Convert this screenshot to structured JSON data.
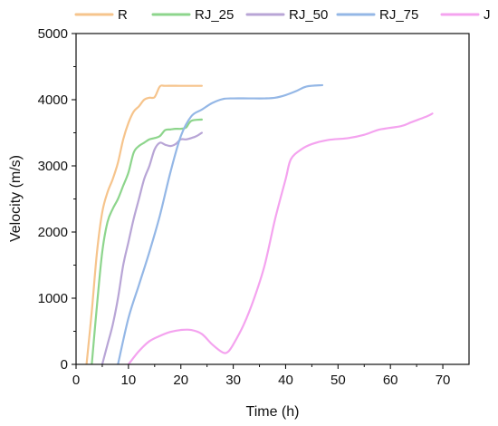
{
  "chart_data": {
    "type": "line",
    "xlabel": "Time (h)",
    "ylabel": "Velocity (m/s)",
    "xlim": [
      0,
      75
    ],
    "ylim": [
      0,
      5000
    ],
    "xticks": [
      0,
      10,
      20,
      30,
      40,
      50,
      60,
      70
    ],
    "yticks": [
      0,
      1000,
      2000,
      3000,
      4000,
      5000
    ],
    "grid": false,
    "legend_position": "top",
    "series": [
      {
        "name": "R",
        "color": "#F6C48C",
        "points": [
          [
            2,
            0
          ],
          [
            3,
            800
          ],
          [
            4,
            1700
          ],
          [
            5,
            2300
          ],
          [
            6,
            2600
          ],
          [
            7,
            2800
          ],
          [
            8,
            3050
          ],
          [
            9,
            3400
          ],
          [
            10,
            3650
          ],
          [
            11,
            3820
          ],
          [
            12,
            3900
          ],
          [
            13,
            4000
          ],
          [
            14,
            4030
          ],
          [
            15,
            4040
          ],
          [
            16,
            4200
          ],
          [
            17,
            4210
          ],
          [
            20,
            4210
          ],
          [
            24,
            4210
          ]
        ]
      },
      {
        "name": "RJ_25",
        "color": "#8DD58C",
        "points": [
          [
            3,
            0
          ],
          [
            4,
            900
          ],
          [
            5,
            1700
          ],
          [
            6,
            2150
          ],
          [
            7,
            2350
          ],
          [
            8,
            2500
          ],
          [
            9,
            2700
          ],
          [
            10,
            2900
          ],
          [
            11,
            3200
          ],
          [
            12,
            3300
          ],
          [
            13,
            3350
          ],
          [
            14,
            3400
          ],
          [
            15,
            3420
          ],
          [
            16,
            3450
          ],
          [
            17,
            3540
          ],
          [
            18,
            3550
          ],
          [
            19,
            3560
          ],
          [
            20,
            3560
          ],
          [
            21,
            3580
          ],
          [
            22,
            3680
          ],
          [
            24,
            3700
          ]
        ]
      },
      {
        "name": "RJ_50",
        "color": "#B8A5D6",
        "points": [
          [
            5,
            0
          ],
          [
            6,
            300
          ],
          [
            7,
            600
          ],
          [
            8,
            1000
          ],
          [
            9,
            1500
          ],
          [
            10,
            1850
          ],
          [
            11,
            2200
          ],
          [
            12,
            2500
          ],
          [
            13,
            2800
          ],
          [
            14,
            3000
          ],
          [
            15,
            3250
          ],
          [
            16,
            3350
          ],
          [
            17,
            3320
          ],
          [
            18,
            3300
          ],
          [
            19,
            3330
          ],
          [
            20,
            3400
          ],
          [
            21,
            3400
          ],
          [
            22,
            3420
          ],
          [
            23,
            3450
          ],
          [
            24,
            3500
          ]
        ]
      },
      {
        "name": "RJ_75",
        "color": "#94B7E6",
        "points": [
          [
            8,
            0
          ],
          [
            10,
            700
          ],
          [
            12,
            1200
          ],
          [
            14,
            1700
          ],
          [
            16,
            2250
          ],
          [
            18,
            2900
          ],
          [
            20,
            3450
          ],
          [
            22,
            3750
          ],
          [
            24,
            3850
          ],
          [
            26,
            3950
          ],
          [
            28,
            4010
          ],
          [
            30,
            4020
          ],
          [
            33,
            4020
          ],
          [
            36,
            4020
          ],
          [
            38,
            4030
          ],
          [
            40,
            4070
          ],
          [
            42,
            4130
          ],
          [
            44,
            4200
          ],
          [
            47,
            4220
          ]
        ]
      },
      {
        "name": "J",
        "color": "#F4A3EF",
        "points": [
          [
            10,
            0
          ],
          [
            12,
            200
          ],
          [
            14,
            350
          ],
          [
            16,
            430
          ],
          [
            18,
            490
          ],
          [
            20,
            520
          ],
          [
            22,
            520
          ],
          [
            24,
            460
          ],
          [
            26,
            300
          ],
          [
            28,
            180
          ],
          [
            29,
            190
          ],
          [
            30,
            300
          ],
          [
            32,
            600
          ],
          [
            34,
            1000
          ],
          [
            36,
            1500
          ],
          [
            38,
            2200
          ],
          [
            40,
            2800
          ],
          [
            41,
            3100
          ],
          [
            43,
            3250
          ],
          [
            45,
            3330
          ],
          [
            48,
            3390
          ],
          [
            52,
            3420
          ],
          [
            55,
            3470
          ],
          [
            58,
            3550
          ],
          [
            62,
            3600
          ],
          [
            64,
            3660
          ],
          [
            67,
            3750
          ],
          [
            68,
            3790
          ]
        ]
      }
    ]
  }
}
